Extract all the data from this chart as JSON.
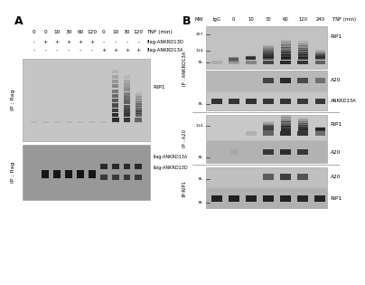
{
  "panel_A": {
    "title": "A",
    "ip_label": "IP : flag",
    "tnf_times": [
      "0",
      "0",
      "10",
      "30",
      "60",
      "120",
      "0",
      "10",
      "30",
      "120"
    ],
    "row1_label": "flag-ANKRD13D",
    "row1_signs": [
      "-",
      "+",
      "+",
      "+",
      "+",
      "+",
      "-",
      "-",
      "-",
      "-"
    ],
    "row2_label": "flag-ANKRD13A",
    "row2_signs": [
      "-",
      "-",
      "-",
      "-",
      "-",
      "-",
      "+",
      "+",
      "+",
      "+"
    ],
    "blot1_label": "RIP1",
    "blot2_label1": "flag-ANKRD13A",
    "blot2_label2": "falg-ANKRD13D",
    "tnf_label": "TNF (min)"
  },
  "panel_B": {
    "title": "B",
    "tnf_times": [
      "MW",
      "IgG",
      "0",
      "10",
      "30",
      "60",
      "120",
      "240"
    ],
    "tnf_label": "TNF (min)",
    "ip1_label": "IP : ANKRD13A",
    "ip2_label": "IP : A20",
    "ip3_label": "IP:RIP1",
    "blots_ip1": [
      "RIP1",
      "A20",
      "ANKRD13A"
    ],
    "blots_ip2": [
      "RIP1",
      "A20"
    ],
    "blots_ip3": [
      "A20",
      "RIP1"
    ]
  }
}
